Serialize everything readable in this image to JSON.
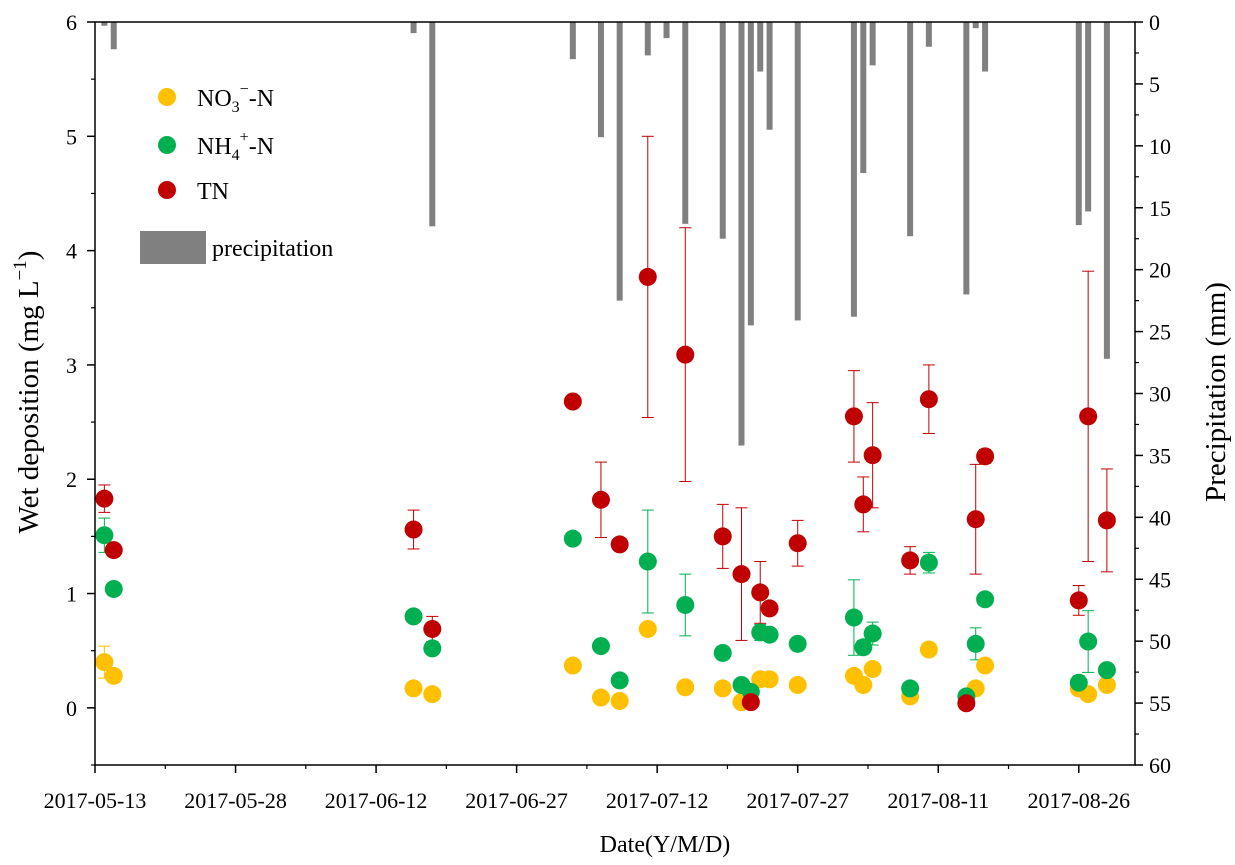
{
  "chart_data": {
    "type": "scatter",
    "xlabel": "Date(Y/M/D)",
    "ylabel_left": "Wet deposition (mg L⁻¹)",
    "ylabel_left_parts": {
      "main": "Wet deposition (mg L",
      "sup": "−1",
      "close": ")"
    },
    "ylabel_right": "Precipitation (mm)",
    "x_ticks": [
      "2017-05-13",
      "2017-05-28",
      "2017-06-12",
      "2017-06-27",
      "2017-07-12",
      "2017-07-27",
      "2017-08-11",
      "2017-08-26"
    ],
    "x_range": [
      "2017-05-13",
      "2017-09-01"
    ],
    "ylim_left": [
      -0.5,
      6
    ],
    "ylim_right": [
      60,
      0
    ],
    "yticks_left": [
      "0",
      "1",
      "2",
      "3",
      "4",
      "5",
      "6"
    ],
    "yticks_right": [
      "0",
      "5",
      "10",
      "15",
      "20",
      "25",
      "30",
      "35",
      "40",
      "45",
      "50",
      "55",
      "60"
    ],
    "legend": {
      "placement": "top-left",
      "items": [
        {
          "base": "NO",
          "sub": "3",
          "sup": "−",
          "tail": "-N",
          "color": "#FFC000"
        },
        {
          "base": "NH",
          "sub": "4",
          "sup": "+",
          "tail": "-N",
          "color": "#00B050"
        },
        {
          "base": "TN",
          "sub": "",
          "sup": "",
          "tail": "",
          "color": "#C00000"
        },
        {
          "base": "precipitation",
          "sub": "",
          "sup": "",
          "tail": "",
          "color": "#808080"
        }
      ]
    },
    "precipitation": {
      "name": "precipitation",
      "color": "#808080",
      "points": [
        {
          "x": "2017-05-14",
          "y": 0.3
        },
        {
          "x": "2017-05-15",
          "y": 2.2
        },
        {
          "x": "2017-06-16",
          "y": 0.9
        },
        {
          "x": "2017-06-18",
          "y": 16.5
        },
        {
          "x": "2017-07-03",
          "y": 3.0
        },
        {
          "x": "2017-07-06",
          "y": 9.3
        },
        {
          "x": "2017-07-08",
          "y": 22.5
        },
        {
          "x": "2017-07-11",
          "y": 2.7
        },
        {
          "x": "2017-07-13",
          "y": 1.3
        },
        {
          "x": "2017-07-15",
          "y": 16.3
        },
        {
          "x": "2017-07-19",
          "y": 17.5
        },
        {
          "x": "2017-07-21",
          "y": 34.2
        },
        {
          "x": "2017-07-22",
          "y": 24.5
        },
        {
          "x": "2017-07-23",
          "y": 4.0
        },
        {
          "x": "2017-07-24",
          "y": 8.7
        },
        {
          "x": "2017-07-27",
          "y": 24.1
        },
        {
          "x": "2017-08-02",
          "y": 23.8
        },
        {
          "x": "2017-08-03",
          "y": 12.2
        },
        {
          "x": "2017-08-04",
          "y": 3.5
        },
        {
          "x": "2017-08-08",
          "y": 17.3
        },
        {
          "x": "2017-08-10",
          "y": 2.0
        },
        {
          "x": "2017-08-14",
          "y": 22.0
        },
        {
          "x": "2017-08-15",
          "y": 0.5
        },
        {
          "x": "2017-08-16",
          "y": 4.0
        },
        {
          "x": "2017-08-26",
          "y": 16.4
        },
        {
          "x": "2017-08-27",
          "y": 15.3
        },
        {
          "x": "2017-08-29",
          "y": 27.2
        }
      ]
    },
    "series": [
      {
        "name": "NO3−-N",
        "color": "#FFC000",
        "points": [
          {
            "x": "2017-05-14",
            "y": 0.4,
            "err": 0.14
          },
          {
            "x": "2017-05-15",
            "y": 0.28,
            "err": 0
          },
          {
            "x": "2017-06-16",
            "y": 0.17,
            "err": 0
          },
          {
            "x": "2017-06-18",
            "y": 0.12,
            "err": 0
          },
          {
            "x": "2017-07-03",
            "y": 0.37,
            "err": 0
          },
          {
            "x": "2017-07-06",
            "y": 0.09,
            "err": 0
          },
          {
            "x": "2017-07-08",
            "y": 0.06,
            "err": 0
          },
          {
            "x": "2017-07-11",
            "y": 0.69,
            "err": 0
          },
          {
            "x": "2017-07-15",
            "y": 0.18,
            "err": 0
          },
          {
            "x": "2017-07-19",
            "y": 0.17,
            "err": 0
          },
          {
            "x": "2017-07-21",
            "y": 0.05,
            "err": 0
          },
          {
            "x": "2017-07-23",
            "y": 0.25,
            "err": 0
          },
          {
            "x": "2017-07-24",
            "y": 0.25,
            "err": 0
          },
          {
            "x": "2017-07-27",
            "y": 0.2,
            "err": 0
          },
          {
            "x": "2017-08-02",
            "y": 0.28,
            "err": 0
          },
          {
            "x": "2017-08-03",
            "y": 0.2,
            "err": 0
          },
          {
            "x": "2017-08-04",
            "y": 0.34,
            "err": 0
          },
          {
            "x": "2017-08-08",
            "y": 0.1,
            "err": 0
          },
          {
            "x": "2017-08-10",
            "y": 0.51,
            "err": 0
          },
          {
            "x": "2017-08-15",
            "y": 0.17,
            "err": 0
          },
          {
            "x": "2017-08-16",
            "y": 0.37,
            "err": 0
          },
          {
            "x": "2017-08-26",
            "y": 0.17,
            "err": 0
          },
          {
            "x": "2017-08-27",
            "y": 0.12,
            "err": 0
          },
          {
            "x": "2017-08-29",
            "y": 0.2,
            "err": 0
          }
        ]
      },
      {
        "name": "NH4+-N",
        "color": "#00B050",
        "points": [
          {
            "x": "2017-05-14",
            "y": 1.51,
            "err": 0.15
          },
          {
            "x": "2017-05-15",
            "y": 1.04,
            "err": 0
          },
          {
            "x": "2017-06-16",
            "y": 0.8,
            "err": 0
          },
          {
            "x": "2017-06-18",
            "y": 0.52,
            "err": 0
          },
          {
            "x": "2017-07-03",
            "y": 1.48,
            "err": 0
          },
          {
            "x": "2017-07-06",
            "y": 0.54,
            "err": 0
          },
          {
            "x": "2017-07-08",
            "y": 0.24,
            "err": 0
          },
          {
            "x": "2017-07-11",
            "y": 1.28,
            "err": 0.45
          },
          {
            "x": "2017-07-15",
            "y": 0.9,
            "err": 0.27
          },
          {
            "x": "2017-07-19",
            "y": 0.48,
            "err": 0
          },
          {
            "x": "2017-07-21",
            "y": 0.2,
            "err": 0
          },
          {
            "x": "2017-07-22",
            "y": 0.14,
            "err": 0
          },
          {
            "x": "2017-07-23",
            "y": 0.66,
            "err": 0.07
          },
          {
            "x": "2017-07-24",
            "y": 0.64,
            "err": 0
          },
          {
            "x": "2017-07-27",
            "y": 0.56,
            "err": 0.04
          },
          {
            "x": "2017-08-02",
            "y": 0.79,
            "err": 0.33
          },
          {
            "x": "2017-08-03",
            "y": 0.53,
            "err": 0.06
          },
          {
            "x": "2017-08-04",
            "y": 0.65,
            "err": 0.1
          },
          {
            "x": "2017-08-08",
            "y": 0.17,
            "err": 0
          },
          {
            "x": "2017-08-10",
            "y": 1.27,
            "err": 0.09
          },
          {
            "x": "2017-08-14",
            "y": 0.1,
            "err": 0
          },
          {
            "x": "2017-08-15",
            "y": 0.56,
            "err": 0.14
          },
          {
            "x": "2017-08-16",
            "y": 0.95,
            "err": 0
          },
          {
            "x": "2017-08-26",
            "y": 0.22,
            "err": 0.06
          },
          {
            "x": "2017-08-27",
            "y": 0.58,
            "err": 0.27
          },
          {
            "x": "2017-08-29",
            "y": 0.33,
            "err": 0
          }
        ]
      },
      {
        "name": "TN",
        "color": "#C00000",
        "points": [
          {
            "x": "2017-05-14",
            "y": 1.83,
            "err": 0.12
          },
          {
            "x": "2017-05-15",
            "y": 1.38,
            "err": 0
          },
          {
            "x": "2017-06-16",
            "y": 1.56,
            "err": 0.17
          },
          {
            "x": "2017-06-18",
            "y": 0.69,
            "err": 0.11
          },
          {
            "x": "2017-07-03",
            "y": 2.68,
            "err": 0
          },
          {
            "x": "2017-07-06",
            "y": 1.82,
            "err": 0.33
          },
          {
            "x": "2017-07-08",
            "y": 1.43,
            "err": 0.05
          },
          {
            "x": "2017-07-11",
            "y": 3.77,
            "err": 1.23
          },
          {
            "x": "2017-07-15",
            "y": 3.09,
            "err": 1.11
          },
          {
            "x": "2017-07-19",
            "y": 1.5,
            "err": 0.28
          },
          {
            "x": "2017-07-21",
            "y": 1.17,
            "err": 0.58
          },
          {
            "x": "2017-07-22",
            "y": 0.05,
            "err": 0
          },
          {
            "x": "2017-07-23",
            "y": 1.01,
            "err": 0.27
          },
          {
            "x": "2017-07-24",
            "y": 0.87,
            "err": 0
          },
          {
            "x": "2017-07-27",
            "y": 1.44,
            "err": 0.2
          },
          {
            "x": "2017-08-02",
            "y": 2.55,
            "err": 0.4
          },
          {
            "x": "2017-08-03",
            "y": 1.78,
            "err": 0.24
          },
          {
            "x": "2017-08-04",
            "y": 2.21,
            "err": 0.46
          },
          {
            "x": "2017-08-08",
            "y": 1.29,
            "err": 0.12
          },
          {
            "x": "2017-08-10",
            "y": 2.7,
            "err": 0.3
          },
          {
            "x": "2017-08-14",
            "y": 0.04,
            "err": 0
          },
          {
            "x": "2017-08-15",
            "y": 1.65,
            "err": 0.48
          },
          {
            "x": "2017-08-16",
            "y": 2.2,
            "err": 0.06
          },
          {
            "x": "2017-08-26",
            "y": 0.94,
            "err": 0.13
          },
          {
            "x": "2017-08-27",
            "y": 2.55,
            "err": 1.27
          },
          {
            "x": "2017-08-29",
            "y": 1.64,
            "err": 0.45
          }
        ]
      }
    ]
  }
}
